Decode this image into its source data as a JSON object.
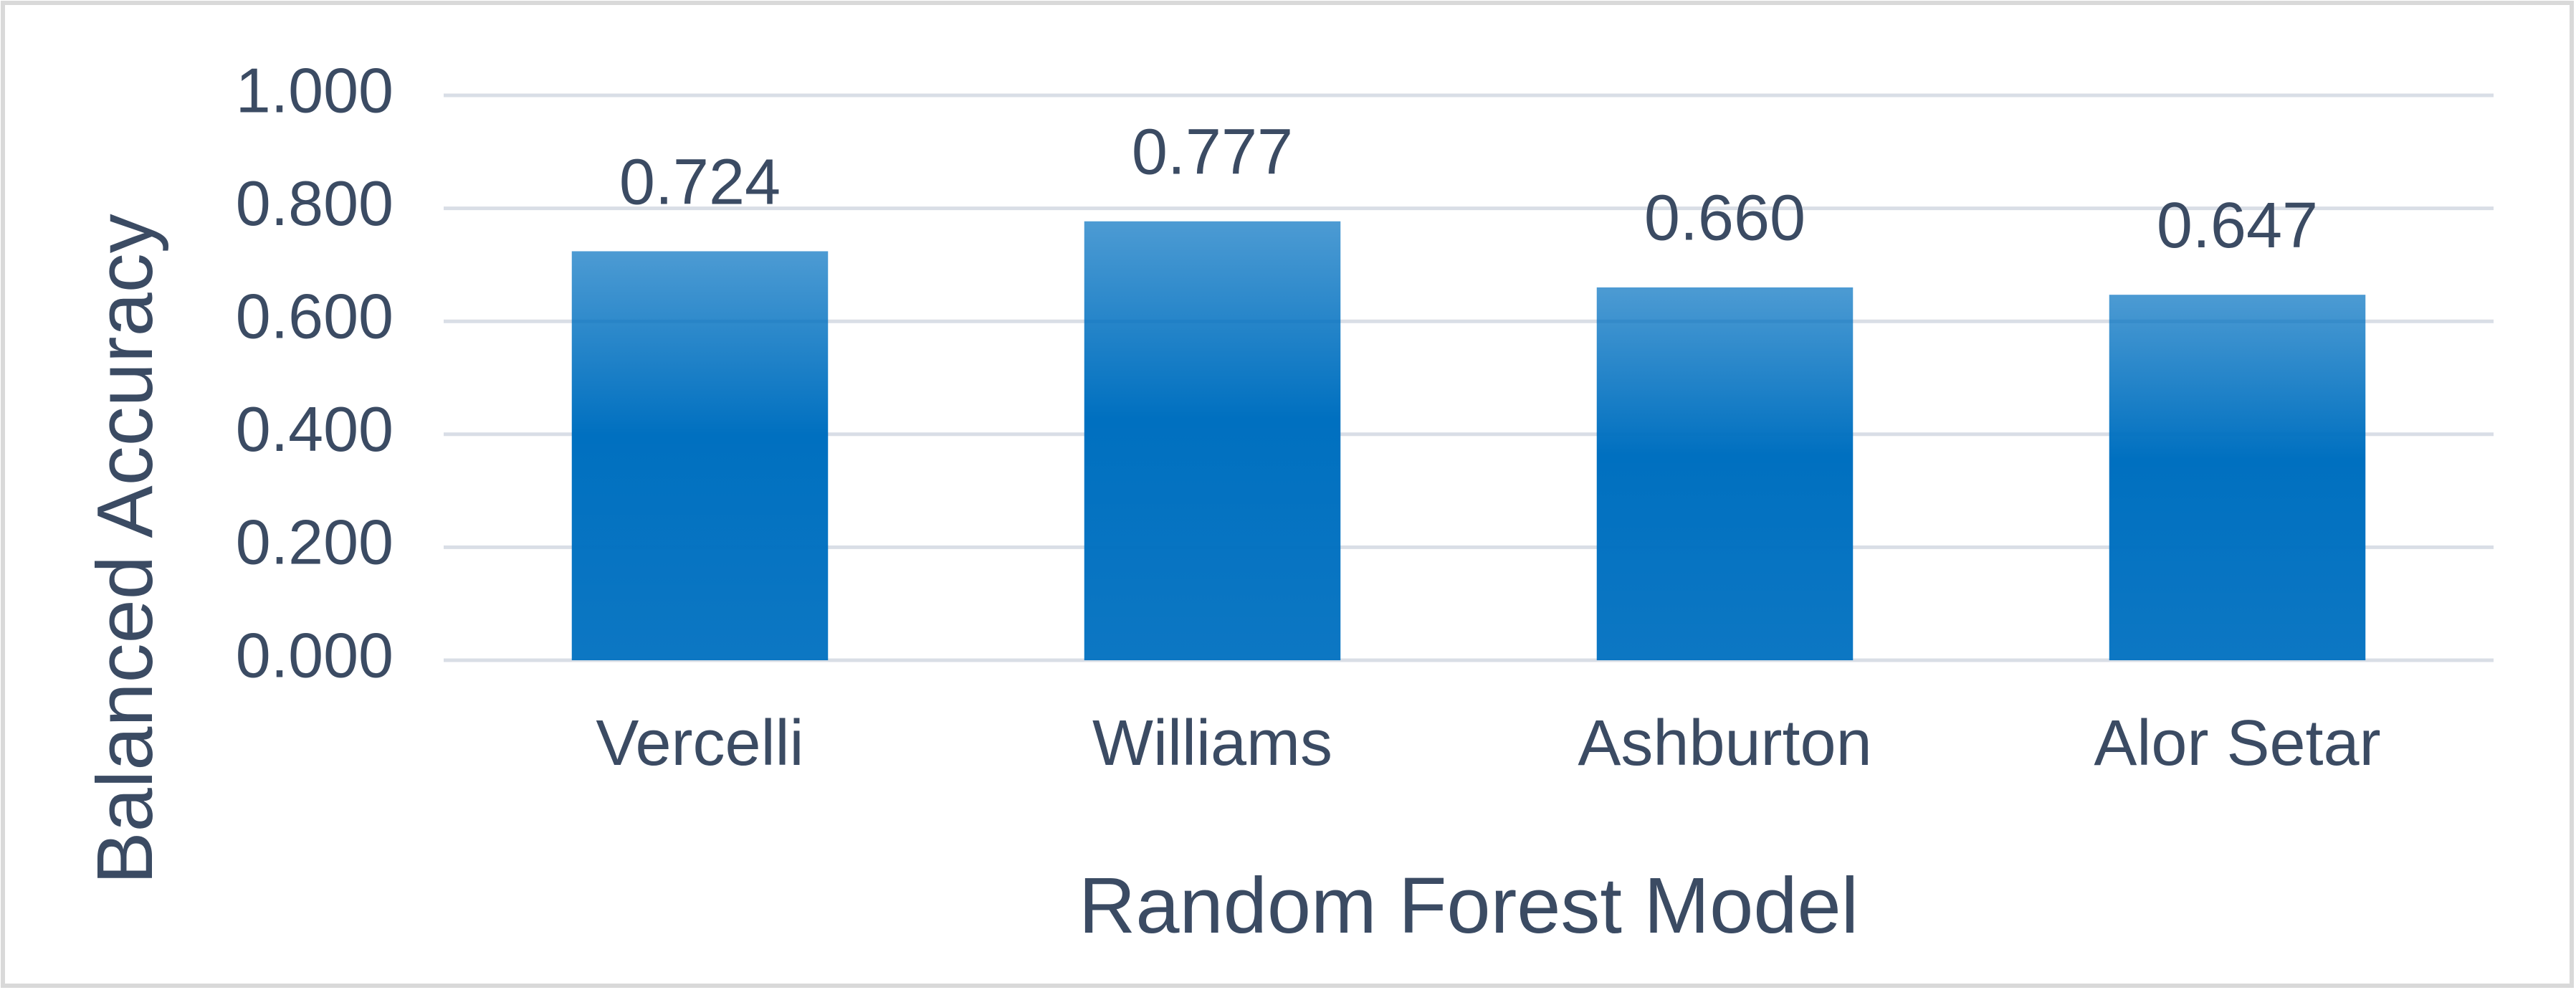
{
  "chart_data": {
    "type": "bar",
    "x_label": "Random Forest Model",
    "y_label": "Balanced Accuracy",
    "categories": [
      "Vercelli",
      "Williams",
      "Ashburton",
      "Alor Setar"
    ],
    "values": [
      0.724,
      0.777,
      0.66,
      0.647
    ],
    "value_labels": [
      "0.724",
      "0.777",
      "0.660",
      "0.647"
    ],
    "color": "#0070c0",
    "ylim": [
      0,
      1
    ],
    "yticks": [
      {
        "value": 0,
        "label": "0.000"
      },
      {
        "value": 0.2,
        "label": "0.200"
      },
      {
        "value": 0.4,
        "label": "0.400"
      },
      {
        "value": 0.6,
        "label": "0.600"
      },
      {
        "value": 0.8,
        "label": "0.800"
      },
      {
        "value": 1,
        "label": "1.000"
      }
    ],
    "grid": true
  }
}
